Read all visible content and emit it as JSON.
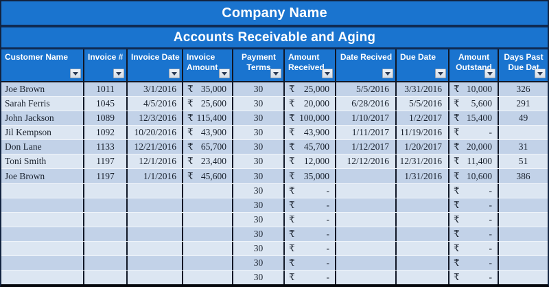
{
  "header": {
    "company_title": "Company Name",
    "report_title": "Accounts Receivable and Aging"
  },
  "columns": [
    {
      "id": "customer-name",
      "lines": [
        "Customer Name"
      ]
    },
    {
      "id": "invoice-number",
      "lines": [
        "Invoice #"
      ]
    },
    {
      "id": "invoice-date",
      "lines": [
        "Invoice Date"
      ]
    },
    {
      "id": "invoice-amount",
      "lines": [
        "Invoice",
        "Amount"
      ]
    },
    {
      "id": "payment-terms",
      "lines": [
        "Payment",
        "Terms"
      ]
    },
    {
      "id": "amount-received",
      "lines": [
        "Amount",
        "Received"
      ]
    },
    {
      "id": "date-received",
      "lines": [
        "Date Recived"
      ]
    },
    {
      "id": "due-date",
      "lines": [
        "Due Date"
      ]
    },
    {
      "id": "amount-outstanding",
      "lines": [
        "Amount",
        "Outstand"
      ]
    },
    {
      "id": "days-past-due",
      "lines": [
        "Days Past",
        "Due Dat"
      ]
    }
  ],
  "currency_symbol": "₹",
  "currency_columns": [
    3,
    5,
    8
  ],
  "rows": [
    [
      "Joe Brown",
      "1011",
      "3/1/2016",
      "35,000",
      "30",
      "25,000",
      "5/5/2016",
      "3/31/2016",
      "10,000",
      "326"
    ],
    [
      "Sarah Ferris",
      "1045",
      "4/5/2016",
      "25,600",
      "30",
      "20,000",
      "6/28/2016",
      "5/5/2016",
      "5,600",
      "291"
    ],
    [
      "John Jackson",
      "1089",
      "12/3/2016",
      "115,400",
      "30",
      "100,000",
      "1/10/2017",
      "1/2/2017",
      "15,400",
      "49"
    ],
    [
      "Jil Kempson",
      "1092",
      "10/20/2016",
      "43,900",
      "30",
      "43,900",
      "1/11/2017",
      "11/19/2016",
      "-",
      ""
    ],
    [
      "Don Lane",
      "1133",
      "12/21/2016",
      "65,700",
      "30",
      "45,700",
      "1/12/2017",
      "1/20/2017",
      "20,000",
      "31"
    ],
    [
      "Toni Smith",
      "1197",
      "12/1/2016",
      "23,400",
      "30",
      "12,000",
      "12/12/2016",
      "12/31/2016",
      "11,400",
      "51"
    ],
    [
      "Joe Brown",
      "1197",
      "1/1/2016",
      "45,600",
      "30",
      "35,000",
      "",
      "1/31/2016",
      "10,600",
      "386"
    ],
    [
      "",
      "",
      "",
      "",
      "30",
      "-",
      "",
      "",
      "-",
      ""
    ],
    [
      "",
      "",
      "",
      "",
      "30",
      "-",
      "",
      "",
      "-",
      ""
    ],
    [
      "",
      "",
      "",
      "",
      "30",
      "-",
      "",
      "",
      "-",
      ""
    ],
    [
      "",
      "",
      "",
      "",
      "30",
      "-",
      "",
      "",
      "-",
      ""
    ],
    [
      "",
      "",
      "",
      "",
      "30",
      "-",
      "",
      "",
      "-",
      ""
    ],
    [
      "",
      "",
      "",
      "",
      "30",
      "-",
      "",
      "",
      "-",
      ""
    ],
    [
      "",
      "",
      "",
      "",
      "30",
      "-",
      "",
      "",
      "-",
      ""
    ]
  ],
  "icons": {
    "filter_dropdown": "caret-down"
  },
  "colors": {
    "header_blue": "#1a74cf",
    "band_separator_navy": "#0f2a52",
    "grid_line_dark": "#101726",
    "row_stripe_dark": "#c2d2e8",
    "row_stripe_light": "#dce6f2",
    "row_divider_light": "#eff4fa",
    "header_text_white": "#ffffff",
    "data_text": "#1a222e",
    "filter_button_bg": "#d6dde6",
    "filter_caret": "#2b3b55"
  }
}
